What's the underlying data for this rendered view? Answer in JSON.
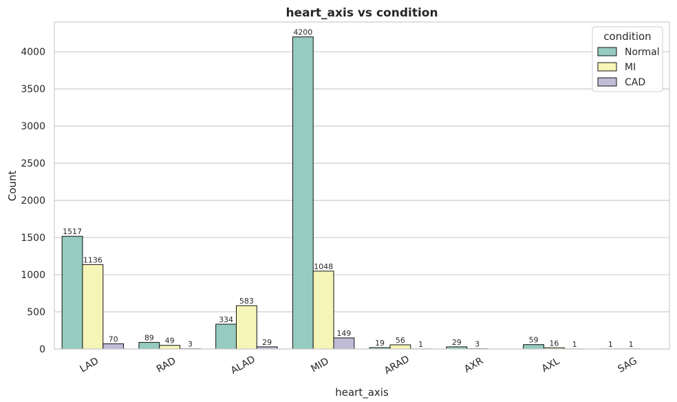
{
  "chart_data": {
    "type": "bar",
    "title": "heart_axis vs condition",
    "xlabel": "heart_axis",
    "ylabel": "Count",
    "categories": [
      "LAD",
      "RAD",
      "ALAD",
      "MID",
      "ARAD",
      "AXR",
      "AXL",
      "SAG"
    ],
    "series": [
      {
        "name": "Normal",
        "color": "#96cbbf",
        "values": [
          1517,
          89,
          334,
          4200,
          19,
          29,
          59,
          1
        ]
      },
      {
        "name": "MI",
        "color": "#f6f5b8",
        "values": [
          1136,
          49,
          583,
          1048,
          56,
          3,
          16,
          1
        ]
      },
      {
        "name": "CAD",
        "color": "#c0bcd8",
        "values": [
          70,
          3,
          29,
          149,
          1,
          null,
          1,
          null
        ]
      }
    ],
    "ylim": [
      0,
      4400
    ],
    "yticks": [
      0,
      500,
      1000,
      1500,
      2000,
      2500,
      3000,
      3500,
      4000
    ],
    "grid": "horizontal",
    "legend": {
      "title": "condition",
      "placement": "top-right"
    },
    "xtick_rotation": -30
  }
}
